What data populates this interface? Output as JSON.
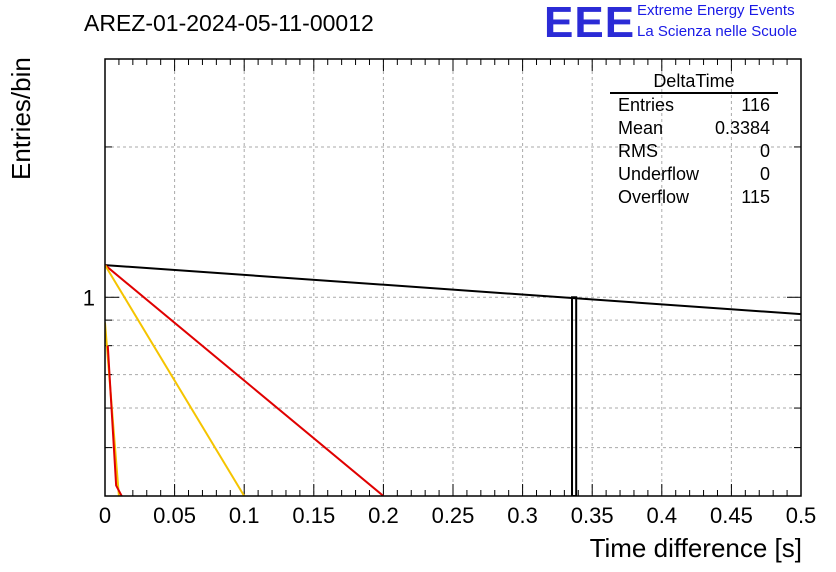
{
  "header": {
    "run_title": "AREZ-01-2024-05-11-00012",
    "logo_text": "EEE",
    "logo_line1": "Extreme Energy Events",
    "logo_line2": "La Scienza nelle Scuole"
  },
  "stats": {
    "name": "DeltaTime",
    "rows": [
      {
        "label": "Entries",
        "value": "116"
      },
      {
        "label": "Mean",
        "value": "0.3384"
      },
      {
        "label": "RMS",
        "value": "0"
      },
      {
        "label": "Underflow",
        "value": "0"
      },
      {
        "label": "Overflow",
        "value": "115"
      }
    ]
  },
  "chart_data": {
    "type": "line",
    "title": "AREZ-01-2024-05-11-00012",
    "xlabel": "Time difference [s]",
    "ylabel": "Entries/bin",
    "xlim": [
      0,
      0.5
    ],
    "y_scale": "log",
    "ylim": [
      0.4,
      3
    ],
    "grid": true,
    "x_ticks": [
      "0",
      "0.05",
      "0.1",
      "0.15",
      "0.2",
      "0.25",
      "0.3",
      "0.35",
      "0.4",
      "0.45",
      "0.5"
    ],
    "y_ticks": [
      {
        "value": 1,
        "label": "1"
      }
    ],
    "histogram": {
      "color": "#000000",
      "bins": [
        {
          "x0": 0.3355,
          "x1": 0.3385,
          "count": 1
        }
      ]
    },
    "series": [
      {
        "color": "#000000",
        "x": [
          0,
          0.5
        ],
        "y": [
          1.16,
          0.925
        ]
      },
      {
        "color": "#e00000",
        "x": [
          0,
          0.2
        ],
        "y": [
          1.16,
          0.4
        ]
      },
      {
        "color": "#f5c400",
        "x": [
          0,
          0.1
        ],
        "y": [
          1.16,
          0.4
        ]
      },
      {
        "color": "#f5c400",
        "x": [
          0,
          0.01
        ],
        "y": [
          0.89,
          0.4
        ]
      },
      {
        "color": "#e00000",
        "x": [
          0.002,
          0.008,
          0.012
        ],
        "y": [
          0.8,
          0.42,
          0.4
        ]
      }
    ]
  }
}
